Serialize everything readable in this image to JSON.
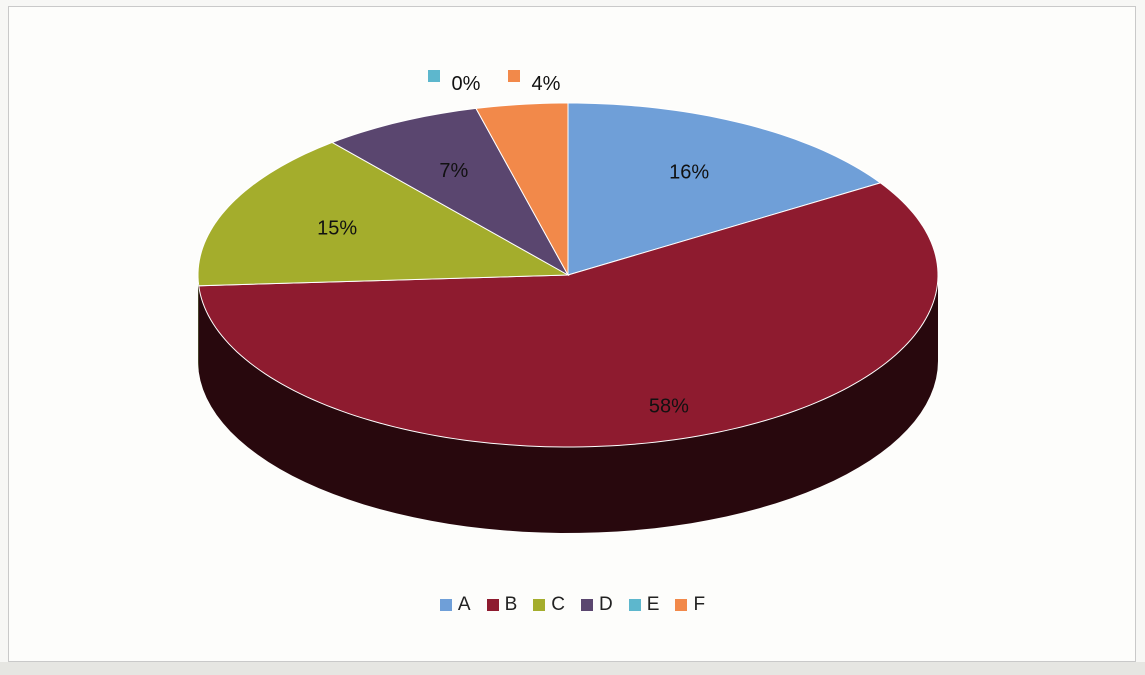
{
  "chart_data": {
    "type": "pie",
    "title": "",
    "categories": [
      "A",
      "B",
      "C",
      "D",
      "E",
      "F"
    ],
    "values": [
      16,
      58,
      15,
      7,
      0,
      4
    ],
    "data_labels": [
      "16%",
      "58%",
      "15%",
      "7%",
      "0%",
      "4%"
    ],
    "colors": [
      "#6f9fd8",
      "#8e1b2f",
      "#a4ad2c",
      "#5a466f",
      "#5db7cd",
      "#f2894a"
    ],
    "legend_position": "bottom",
    "style": "3d"
  }
}
